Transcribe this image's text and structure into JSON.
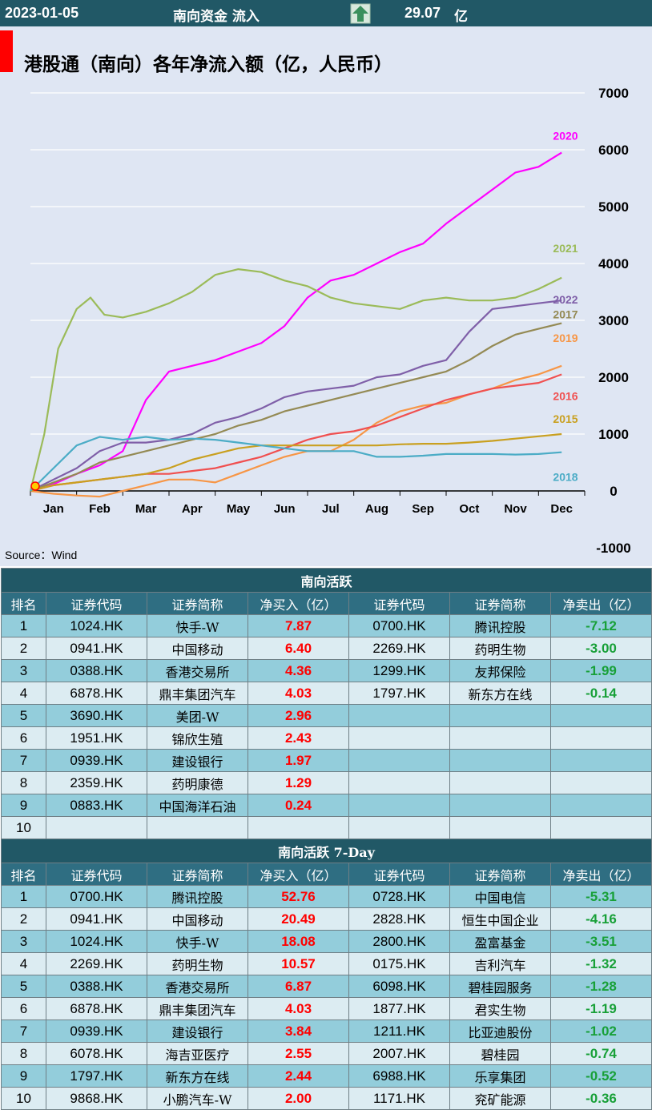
{
  "header": {
    "date": "2023-01-05",
    "label": "南向资金 流入",
    "value": "29.07",
    "unit": "亿",
    "arrow_icon": "up-arrow-icon",
    "arrow_color": "#3a8f5c"
  },
  "chart": {
    "title": "港股通（南向）各年净流入额（亿，人民币）",
    "source": "Source：Wind"
  },
  "chart_data": {
    "type": "line",
    "title": "港股通（南向）各年净流入额（亿，人民币）",
    "xlabel": "",
    "ylabel": "",
    "x_ticks": [
      "Jan",
      "Feb",
      "Mar",
      "Apr",
      "May",
      "Jun",
      "Jul",
      "Aug",
      "Sep",
      "Oct",
      "Nov",
      "Dec"
    ],
    "y_ticks": [
      -1000,
      0,
      1000,
      2000,
      3000,
      4000,
      5000,
      6000,
      7000
    ],
    "ylim": [
      -1000,
      7000
    ],
    "grid": true,
    "x_unit": "month index (0 = start of Jan, 12 = end of Dec)",
    "series": [
      {
        "name": "2020",
        "color": "#ff00ff",
        "points": [
          [
            0,
            0
          ],
          [
            0.5,
            120
          ],
          [
            1,
            300
          ],
          [
            1.5,
            450
          ],
          [
            2,
            700
          ],
          [
            2.5,
            1600
          ],
          [
            3,
            2100
          ],
          [
            3.5,
            2200
          ],
          [
            4,
            2300
          ],
          [
            4.5,
            2450
          ],
          [
            5,
            2600
          ],
          [
            5.5,
            2900
          ],
          [
            6,
            3400
          ],
          [
            6.5,
            3700
          ],
          [
            7,
            3800
          ],
          [
            7.5,
            4000
          ],
          [
            8,
            4200
          ],
          [
            8.5,
            4350
          ],
          [
            9,
            4700
          ],
          [
            9.5,
            5000
          ],
          [
            10,
            5300
          ],
          [
            10.5,
            5600
          ],
          [
            11,
            5700
          ],
          [
            11.5,
            5950
          ]
        ]
      },
      {
        "name": "2021",
        "color": "#9bbb59",
        "points": [
          [
            0,
            0
          ],
          [
            0.3,
            1000
          ],
          [
            0.6,
            2500
          ],
          [
            1,
            3200
          ],
          [
            1.3,
            3400
          ],
          [
            1.6,
            3100
          ],
          [
            2,
            3050
          ],
          [
            2.5,
            3150
          ],
          [
            3,
            3300
          ],
          [
            3.5,
            3500
          ],
          [
            4,
            3800
          ],
          [
            4.5,
            3900
          ],
          [
            5,
            3850
          ],
          [
            5.5,
            3700
          ],
          [
            6,
            3600
          ],
          [
            6.5,
            3400
          ],
          [
            7,
            3300
          ],
          [
            7.5,
            3250
          ],
          [
            8,
            3200
          ],
          [
            8.5,
            3350
          ],
          [
            9,
            3400
          ],
          [
            9.5,
            3350
          ],
          [
            10,
            3350
          ],
          [
            10.5,
            3400
          ],
          [
            11,
            3550
          ],
          [
            11.5,
            3750
          ]
        ]
      },
      {
        "name": "2022",
        "color": "#7f5fa8",
        "points": [
          [
            0,
            0
          ],
          [
            0.5,
            200
          ],
          [
            1,
            400
          ],
          [
            1.5,
            700
          ],
          [
            2,
            850
          ],
          [
            2.5,
            850
          ],
          [
            3,
            900
          ],
          [
            3.5,
            1000
          ],
          [
            4,
            1200
          ],
          [
            4.5,
            1300
          ],
          [
            5,
            1450
          ],
          [
            5.5,
            1650
          ],
          [
            6,
            1750
          ],
          [
            6.5,
            1800
          ],
          [
            7,
            1850
          ],
          [
            7.5,
            2000
          ],
          [
            8,
            2050
          ],
          [
            8.5,
            2200
          ],
          [
            9,
            2300
          ],
          [
            9.5,
            2800
          ],
          [
            10,
            3200
          ],
          [
            10.5,
            3250
          ],
          [
            11,
            3300
          ],
          [
            11.5,
            3350
          ]
        ]
      },
      {
        "name": "2017",
        "color": "#948a54",
        "points": [
          [
            0,
            0
          ],
          [
            0.5,
            150
          ],
          [
            1,
            300
          ],
          [
            1.5,
            500
          ],
          [
            2,
            600
          ],
          [
            2.5,
            700
          ],
          [
            3,
            800
          ],
          [
            3.5,
            900
          ],
          [
            4,
            1000
          ],
          [
            4.5,
            1150
          ],
          [
            5,
            1250
          ],
          [
            5.5,
            1400
          ],
          [
            6,
            1500
          ],
          [
            6.5,
            1600
          ],
          [
            7,
            1700
          ],
          [
            7.5,
            1800
          ],
          [
            8,
            1900
          ],
          [
            8.5,
            2000
          ],
          [
            9,
            2100
          ],
          [
            9.5,
            2300
          ],
          [
            10,
            2550
          ],
          [
            10.5,
            2750
          ],
          [
            11,
            2850
          ],
          [
            11.5,
            2950
          ]
        ]
      },
      {
        "name": "2019",
        "color": "#f79646",
        "points": [
          [
            0,
            0
          ],
          [
            0.5,
            -50
          ],
          [
            1,
            -80
          ],
          [
            1.5,
            -100
          ],
          [
            2,
            0
          ],
          [
            2.5,
            100
          ],
          [
            3,
            200
          ],
          [
            3.5,
            200
          ],
          [
            4,
            150
          ],
          [
            4.5,
            300
          ],
          [
            5,
            450
          ],
          [
            5.5,
            600
          ],
          [
            6,
            700
          ],
          [
            6.5,
            700
          ],
          [
            7,
            900
          ],
          [
            7.5,
            1200
          ],
          [
            8,
            1400
          ],
          [
            8.5,
            1500
          ],
          [
            9,
            1550
          ],
          [
            9.5,
            1700
          ],
          [
            10,
            1800
          ],
          [
            10.5,
            1950
          ],
          [
            11,
            2050
          ],
          [
            11.5,
            2200
          ]
        ]
      },
      {
        "name": "2016",
        "color": "#f05050",
        "points": [
          [
            0,
            0
          ],
          [
            0.5,
            100
          ],
          [
            1,
            150
          ],
          [
            1.5,
            200
          ],
          [
            2,
            250
          ],
          [
            2.5,
            300
          ],
          [
            3,
            300
          ],
          [
            3.5,
            350
          ],
          [
            4,
            400
          ],
          [
            4.5,
            500
          ],
          [
            5,
            600
          ],
          [
            5.5,
            750
          ],
          [
            6,
            900
          ],
          [
            6.5,
            1000
          ],
          [
            7,
            1050
          ],
          [
            7.5,
            1150
          ],
          [
            8,
            1300
          ],
          [
            8.5,
            1450
          ],
          [
            9,
            1600
          ],
          [
            9.5,
            1700
          ],
          [
            10,
            1800
          ],
          [
            10.5,
            1850
          ],
          [
            11,
            1900
          ],
          [
            11.5,
            2050
          ]
        ]
      },
      {
        "name": "2015",
        "color": "#c9a020",
        "points": [
          [
            0,
            0
          ],
          [
            0.5,
            100
          ],
          [
            1,
            150
          ],
          [
            1.5,
            200
          ],
          [
            2,
            250
          ],
          [
            2.5,
            300
          ],
          [
            3,
            400
          ],
          [
            3.5,
            550
          ],
          [
            4,
            650
          ],
          [
            4.5,
            750
          ],
          [
            5,
            800
          ],
          [
            5.5,
            800
          ],
          [
            6,
            800
          ],
          [
            6.5,
            800
          ],
          [
            7,
            800
          ],
          [
            7.5,
            800
          ],
          [
            8,
            820
          ],
          [
            8.5,
            830
          ],
          [
            9,
            830
          ],
          [
            9.5,
            850
          ],
          [
            10,
            880
          ],
          [
            10.5,
            920
          ],
          [
            11,
            960
          ],
          [
            11.5,
            1000
          ]
        ]
      },
      {
        "name": "2018",
        "color": "#4bacc6",
        "points": [
          [
            0,
            0
          ],
          [
            0.5,
            400
          ],
          [
            1,
            800
          ],
          [
            1.5,
            950
          ],
          [
            2,
            900
          ],
          [
            2.5,
            950
          ],
          [
            3,
            900
          ],
          [
            3.5,
            920
          ],
          [
            4,
            900
          ],
          [
            4.5,
            850
          ],
          [
            5,
            800
          ],
          [
            5.5,
            750
          ],
          [
            6,
            700
          ],
          [
            6.5,
            700
          ],
          [
            7,
            700
          ],
          [
            7.5,
            600
          ],
          [
            8,
            600
          ],
          [
            8.5,
            620
          ],
          [
            9,
            650
          ],
          [
            9.5,
            650
          ],
          [
            10,
            650
          ],
          [
            10.5,
            640
          ],
          [
            11,
            650
          ],
          [
            11.5,
            680
          ]
        ]
      }
    ],
    "series_labels": [
      "2020",
      "2021",
      "2022",
      "2017",
      "2019",
      "2016",
      "2015",
      "2018"
    ]
  },
  "table1": {
    "title": "南向活跃",
    "headers": [
      "排名",
      "证券代码",
      "证券简称",
      "净买入（亿）",
      "证券代码",
      "证券简称",
      "净卖出（亿）"
    ],
    "rows": [
      [
        "1",
        "1024.HK",
        "快手-W",
        "7.87",
        "0700.HK",
        "腾讯控股",
        "-7.12"
      ],
      [
        "2",
        "0941.HK",
        "中国移动",
        "6.40",
        "2269.HK",
        "药明生物",
        "-3.00"
      ],
      [
        "3",
        "0388.HK",
        "香港交易所",
        "4.36",
        "1299.HK",
        "友邦保险",
        "-1.99"
      ],
      [
        "4",
        "6878.HK",
        "鼎丰集团汽车",
        "4.03",
        "1797.HK",
        "新东方在线",
        "-0.14"
      ],
      [
        "5",
        "3690.HK",
        "美团-W",
        "2.96",
        "",
        "",
        ""
      ],
      [
        "6",
        "1951.HK",
        "锦欣生殖",
        "2.43",
        "",
        "",
        ""
      ],
      [
        "7",
        "0939.HK",
        "建设银行",
        "1.97",
        "",
        "",
        ""
      ],
      [
        "8",
        "2359.HK",
        "药明康德",
        "1.29",
        "",
        "",
        ""
      ],
      [
        "9",
        "0883.HK",
        "中国海洋石油",
        "0.24",
        "",
        "",
        ""
      ],
      [
        "10",
        "",
        "",
        "",
        "",
        "",
        ""
      ]
    ]
  },
  "table2": {
    "title": "南向活跃 7-Day",
    "headers": [
      "排名",
      "证券代码",
      "证券简称",
      "净买入（亿）",
      "证券代码",
      "证券简称",
      "净卖出（亿）"
    ],
    "rows": [
      [
        "1",
        "0700.HK",
        "腾讯控股",
        "52.76",
        "0728.HK",
        "中国电信",
        "-5.31"
      ],
      [
        "2",
        "0941.HK",
        "中国移动",
        "20.49",
        "2828.HK",
        "恒生中国企业",
        "-4.16"
      ],
      [
        "3",
        "1024.HK",
        "快手-W",
        "18.08",
        "2800.HK",
        "盈富基金",
        "-3.51"
      ],
      [
        "4",
        "2269.HK",
        "药明生物",
        "10.57",
        "0175.HK",
        "吉利汽车",
        "-1.32"
      ],
      [
        "5",
        "0388.HK",
        "香港交易所",
        "6.87",
        "6098.HK",
        "碧桂园服务",
        "-1.28"
      ],
      [
        "6",
        "6878.HK",
        "鼎丰集团汽车",
        "4.03",
        "1877.HK",
        "君实生物",
        "-1.19"
      ],
      [
        "7",
        "0939.HK",
        "建设银行",
        "3.84",
        "1211.HK",
        "比亚迪股份",
        "-1.02"
      ],
      [
        "8",
        "6078.HK",
        "海吉亚医疗",
        "2.55",
        "2007.HK",
        "碧桂园",
        "-0.74"
      ],
      [
        "9",
        "1797.HK",
        "新东方在线",
        "2.44",
        "6988.HK",
        "乐享集团",
        "-0.52"
      ],
      [
        "10",
        "9868.HK",
        "小鹏汽车-W",
        "2.00",
        "1171.HK",
        "兖矿能源",
        "-0.36"
      ]
    ]
  }
}
